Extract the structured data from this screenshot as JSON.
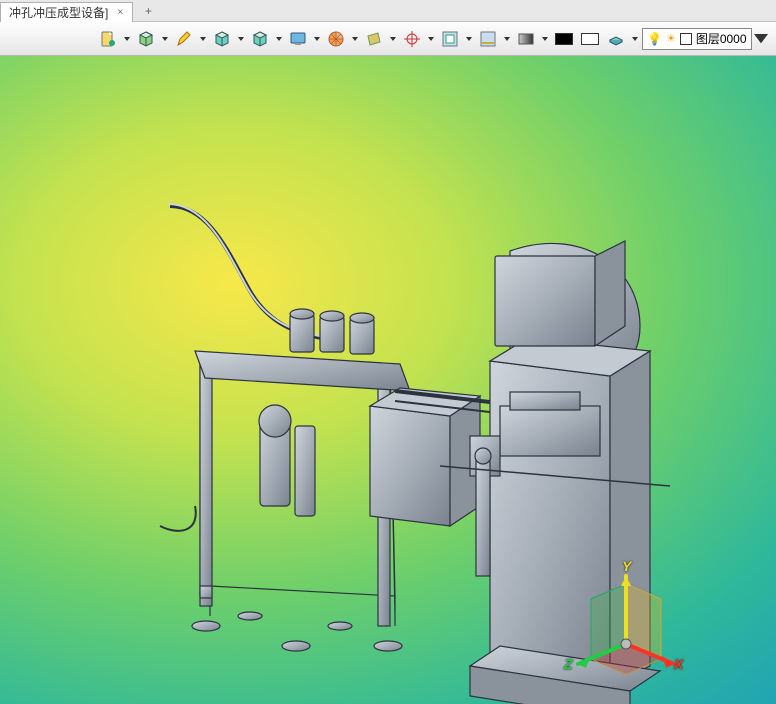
{
  "tab": {
    "title": "冲孔冲压成型设备]",
    "close_glyph": "×",
    "add_glyph": "+"
  },
  "toolbar": {
    "items": [
      {
        "name": "new-icon",
        "fill": "#f6d86b",
        "accent": "#2a7",
        "shape": "doc"
      },
      {
        "name": "cube-green-icon",
        "fill": "#8fd27a",
        "accent": "#357",
        "shape": "cube"
      },
      {
        "name": "pencil-icon",
        "fill": "#f7cf3a",
        "accent": "#d33",
        "shape": "pencil"
      },
      {
        "name": "cube-blue-icon",
        "fill": "#6bd2b8",
        "accent": "#258",
        "shape": "cube"
      },
      {
        "name": "cube-teal-icon",
        "fill": "#6bd2b8",
        "accent": "#258",
        "shape": "cube"
      },
      {
        "name": "workstation-icon",
        "fill": "#6fb6e0",
        "accent": "#357",
        "shape": "screen"
      },
      {
        "name": "disc-orange-icon",
        "fill": "#f2a33c",
        "accent": "#b55",
        "shape": "disc"
      },
      {
        "name": "sheet-icon",
        "fill": "#d7c86a",
        "accent": "#795",
        "shape": "sheet"
      },
      {
        "name": "target-icon",
        "fill": "none",
        "accent": "#c33",
        "shape": "target"
      },
      {
        "name": "frame-green-icon",
        "fill": "#cde",
        "accent": "#2a7",
        "shape": "frame"
      },
      {
        "name": "frame-yellow-icon",
        "fill": "#cde",
        "accent": "#ca3",
        "shape": "frameline"
      },
      {
        "name": "gradient-icon",
        "fill": "#888",
        "accent": "#444",
        "shape": "grad"
      },
      {
        "name": "swatch-black",
        "fill": "#000000",
        "shape": "swatch"
      },
      {
        "name": "swatch-white",
        "fill": "#ffffff",
        "shape": "swatch"
      },
      {
        "name": "layer-slab-icon",
        "fill": "#7ed0b0",
        "accent": "#258",
        "shape": "slab"
      }
    ]
  },
  "layer": {
    "name": "图层0000",
    "color": "#ffffff"
  },
  "viewport": {
    "background_gradient": {
      "stops": [
        "#f7e84a",
        "#c3e24f",
        "#6ecf6a",
        "#2fb89a",
        "#1a9bbf",
        "#1277b3"
      ]
    },
    "model_color": "#a6aeb8",
    "model_edge": "#2c3340",
    "model_highlight": "#cfd5dc",
    "model_shadow": "#6c7480"
  },
  "triad": {
    "axes": {
      "x": {
        "label": "X",
        "color": "#ff3322"
      },
      "y": {
        "label": "Y",
        "color": "#eedd22"
      },
      "z": {
        "label": "Z",
        "color": "#22cc44"
      }
    },
    "plane_xy": "rgba(220,180,40,0.35)",
    "plane_yz": "rgba(60,180,80,0.35)",
    "plane_xz": "rgba(200,60,50,0.35)"
  }
}
